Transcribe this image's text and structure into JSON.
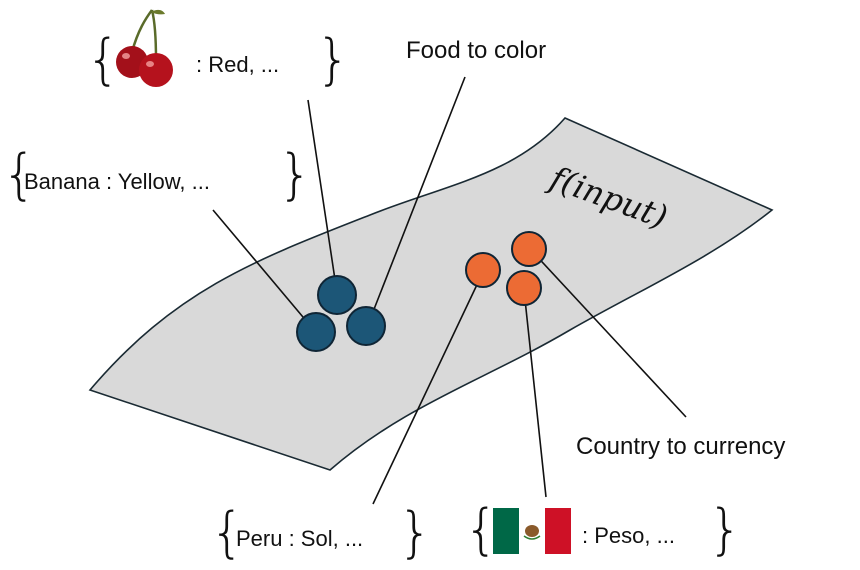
{
  "manifold": {
    "function_label": "f(input)",
    "fill_color": "#d9d9d9",
    "stroke_color": "#1a2a33"
  },
  "clusters": {
    "food": {
      "color": "#1c5677",
      "label": "Food to color"
    },
    "country": {
      "color": "#ec6b34",
      "label": "Country to currency"
    }
  },
  "examples": {
    "cherry": {
      "text": ": Red, ...",
      "icon": "cherry-icon"
    },
    "banana": {
      "text": "Banana : Yellow, ..."
    },
    "peru": {
      "text": "Peru : Sol, ..."
    },
    "mexico": {
      "text": ": Peso, ...",
      "icon": "mexico-flag-icon",
      "flag_colors": [
        "#006847",
        "#ffffff",
        "#ce1126"
      ]
    }
  }
}
